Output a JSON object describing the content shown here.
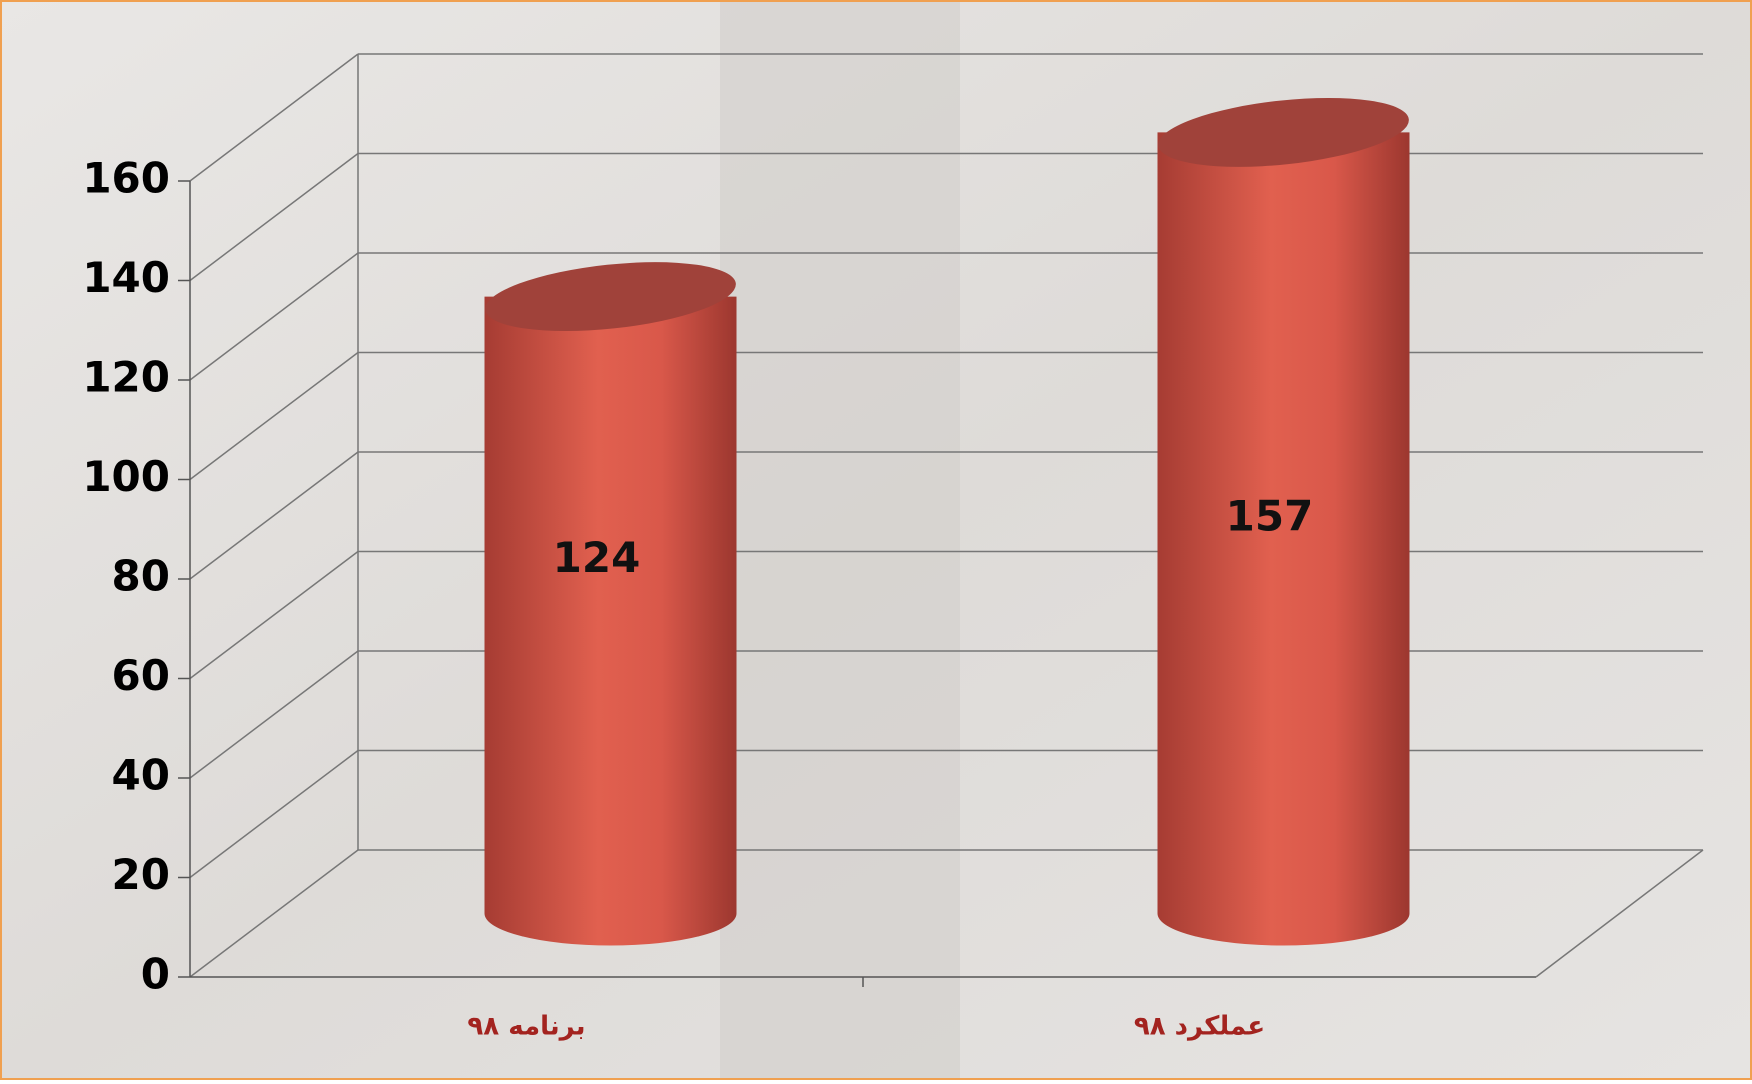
{
  "chart_data": {
    "type": "bar3d",
    "categories": [
      "برنامه ۹۸",
      "عملکرد ۹۸"
    ],
    "values": [
      124,
      157
    ],
    "color": "#d9584a",
    "ylim": [
      0,
      160
    ],
    "yticks": [
      0,
      20,
      40,
      60,
      80,
      100,
      120,
      140,
      160
    ],
    "grid": true
  }
}
